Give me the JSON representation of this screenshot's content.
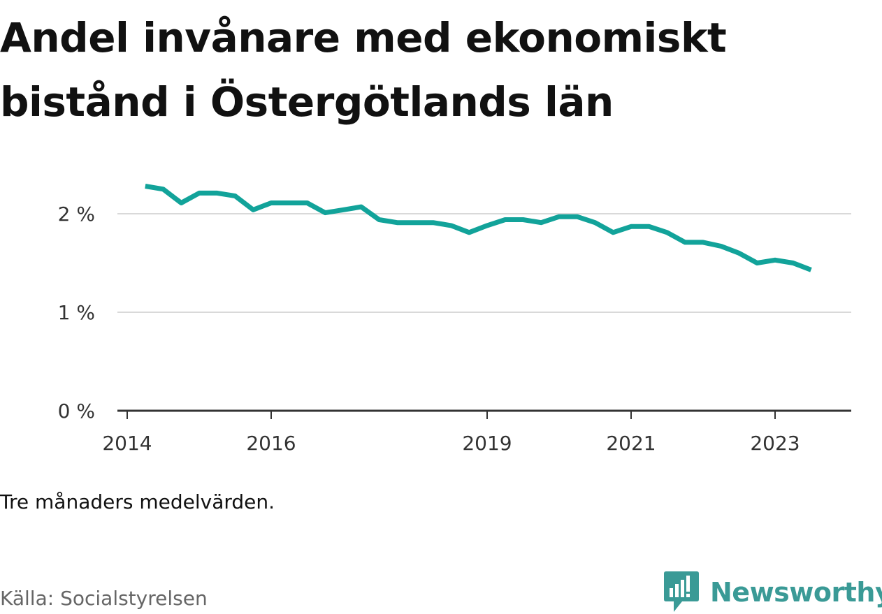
{
  "chart_data": {
    "type": "line",
    "title": "Andel invånare med ekonomiskt bistånd i Östergötlands län",
    "xlabel": "",
    "ylabel": "",
    "note": "Tre månaders medelvärden.",
    "source": "Källa: Socialstyrelsen",
    "x_ticks": [
      "2014",
      "2016",
      "2019",
      "2021",
      "2023"
    ],
    "y_ticks": [
      "0 %",
      "1 %",
      "2 %"
    ],
    "ylim": [
      0,
      2.4
    ],
    "grid": true,
    "line_color": "#12a39a",
    "x": [
      "2014-04",
      "2014-07",
      "2014-10",
      "2015-01",
      "2015-04",
      "2015-07",
      "2015-10",
      "2016-01",
      "2016-04",
      "2016-07",
      "2016-10",
      "2017-01",
      "2017-04",
      "2017-07",
      "2017-10",
      "2018-01",
      "2018-04",
      "2018-07",
      "2018-10",
      "2019-01",
      "2019-04",
      "2019-07",
      "2019-10",
      "2020-01",
      "2020-04",
      "2020-07",
      "2020-10",
      "2021-01",
      "2021-04",
      "2021-07",
      "2021-10",
      "2022-01",
      "2022-04",
      "2022-07",
      "2022-10",
      "2023-01",
      "2023-04",
      "2023-07"
    ],
    "values": [
      2.28,
      2.25,
      2.11,
      2.21,
      2.21,
      2.18,
      2.04,
      2.11,
      2.11,
      2.11,
      2.01,
      2.04,
      2.07,
      1.94,
      1.91,
      1.91,
      1.91,
      1.88,
      1.81,
      1.88,
      1.94,
      1.94,
      1.91,
      1.97,
      1.97,
      1.91,
      1.81,
      1.87,
      1.87,
      1.81,
      1.71,
      1.71,
      1.67,
      1.6,
      1.5,
      1.53,
      1.5,
      1.43
    ]
  },
  "brand": {
    "name": "Newsworthy",
    "color": "#3a9a96",
    "icon": "newsworthy-logo-icon"
  }
}
